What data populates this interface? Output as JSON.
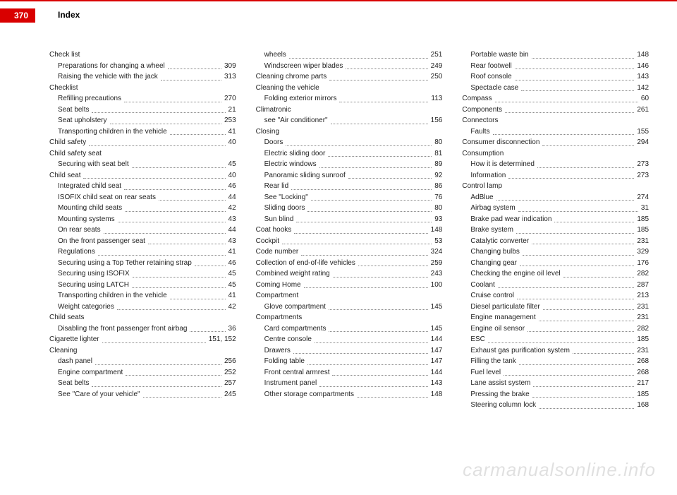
{
  "header": {
    "page_number": "370",
    "title": "Index",
    "tab_bg": "#d90000",
    "tab_fg": "#ffffff"
  },
  "watermark": "carmanualsonline.info",
  "columns": [
    [
      {
        "label": "Check list",
        "sub": false,
        "page": ""
      },
      {
        "label": "Preparations for changing a wheel",
        "sub": true,
        "page": "309"
      },
      {
        "label": "Raising the vehicle with the jack",
        "sub": true,
        "page": "313"
      },
      {
        "label": "Checklist",
        "sub": false,
        "page": ""
      },
      {
        "label": "Refilling precautions",
        "sub": true,
        "page": "270"
      },
      {
        "label": "Seat belts",
        "sub": true,
        "page": "21"
      },
      {
        "label": "Seat upholstery",
        "sub": true,
        "page": "253"
      },
      {
        "label": "Transporting children in the vehicle",
        "sub": true,
        "page": "41"
      },
      {
        "label": "Child safety",
        "sub": false,
        "page": "40"
      },
      {
        "label": "Child safety seat",
        "sub": false,
        "page": ""
      },
      {
        "label": "Securing with seat belt",
        "sub": true,
        "page": "45"
      },
      {
        "label": "Child seat",
        "sub": false,
        "page": "40"
      },
      {
        "label": "Integrated child seat",
        "sub": true,
        "page": "46"
      },
      {
        "label": "ISOFIX child seat on rear seats",
        "sub": true,
        "page": "44"
      },
      {
        "label": "Mounting child seats",
        "sub": true,
        "page": "42"
      },
      {
        "label": "Mounting systems",
        "sub": true,
        "page": "43"
      },
      {
        "label": "On rear seats",
        "sub": true,
        "page": "44"
      },
      {
        "label": "On the front passenger seat",
        "sub": true,
        "page": "43"
      },
      {
        "label": "Regulations",
        "sub": true,
        "page": "41"
      },
      {
        "label": "Securing using a Top Tether retaining strap",
        "sub": true,
        "page": "46"
      },
      {
        "label": "Securing using ISOFIX",
        "sub": true,
        "page": "45"
      },
      {
        "label": "Securing using LATCH",
        "sub": true,
        "page": "45"
      },
      {
        "label": "Transporting children in the vehicle",
        "sub": true,
        "page": "41"
      },
      {
        "label": "Weight categories",
        "sub": true,
        "page": "42"
      },
      {
        "label": "Child seats",
        "sub": false,
        "page": ""
      },
      {
        "label": "Disabling the front passenger front airbag",
        "sub": true,
        "page": "36"
      },
      {
        "label": "Cigarette lighter",
        "sub": false,
        "page": "151, 152"
      },
      {
        "label": "Cleaning",
        "sub": false,
        "page": ""
      },
      {
        "label": "dash panel",
        "sub": true,
        "page": "256"
      },
      {
        "label": "Engine compartment",
        "sub": true,
        "page": "252"
      },
      {
        "label": "Seat belts",
        "sub": true,
        "page": "257"
      },
      {
        "label": "See \"Care of your vehicle\"",
        "sub": true,
        "page": "245"
      }
    ],
    [
      {
        "label": "wheels",
        "sub": true,
        "page": "251"
      },
      {
        "label": "Windscreen wiper blades",
        "sub": true,
        "page": "249"
      },
      {
        "label": "Cleaning chrome parts",
        "sub": false,
        "page": "250"
      },
      {
        "label": "Cleaning the vehicle",
        "sub": false,
        "page": ""
      },
      {
        "label": "Folding exterior mirrors",
        "sub": true,
        "page": "113"
      },
      {
        "label": "Climatronic",
        "sub": false,
        "page": ""
      },
      {
        "label": "see \"Air conditioner\"",
        "sub": true,
        "page": "156"
      },
      {
        "label": "Closing",
        "sub": false,
        "page": ""
      },
      {
        "label": "Doors",
        "sub": true,
        "page": "80"
      },
      {
        "label": "Electric sliding door",
        "sub": true,
        "page": "81"
      },
      {
        "label": "Electric windows",
        "sub": true,
        "page": "89"
      },
      {
        "label": "Panoramic sliding sunroof",
        "sub": true,
        "page": "92"
      },
      {
        "label": "Rear lid",
        "sub": true,
        "page": "86"
      },
      {
        "label": "See \"Locking\"",
        "sub": true,
        "page": "76"
      },
      {
        "label": "Sliding doors",
        "sub": true,
        "page": "80"
      },
      {
        "label": "Sun blind",
        "sub": true,
        "page": "93"
      },
      {
        "label": "Coat hooks",
        "sub": false,
        "page": "148"
      },
      {
        "label": "Cockpit",
        "sub": false,
        "page": "53"
      },
      {
        "label": "Code number",
        "sub": false,
        "page": "324"
      },
      {
        "label": "Collection of end-of-life vehicles",
        "sub": false,
        "page": "259"
      },
      {
        "label": "Combined weight rating",
        "sub": false,
        "page": "243"
      },
      {
        "label": "Coming Home",
        "sub": false,
        "page": "100"
      },
      {
        "label": "Compartment",
        "sub": false,
        "page": ""
      },
      {
        "label": "Glove compartment",
        "sub": true,
        "page": "145"
      },
      {
        "label": "Compartments",
        "sub": false,
        "page": ""
      },
      {
        "label": "Card compartments",
        "sub": true,
        "page": "145"
      },
      {
        "label": "Centre console",
        "sub": true,
        "page": "144"
      },
      {
        "label": "Drawers",
        "sub": true,
        "page": "147"
      },
      {
        "label": "Folding table",
        "sub": true,
        "page": "147"
      },
      {
        "label": "Front central armrest",
        "sub": true,
        "page": "144"
      },
      {
        "label": "Instrument panel",
        "sub": true,
        "page": "143"
      },
      {
        "label": "Other storage compartments",
        "sub": true,
        "page": "148"
      }
    ],
    [
      {
        "label": "Portable waste bin",
        "sub": true,
        "page": "148"
      },
      {
        "label": "Rear footwell",
        "sub": true,
        "page": "146"
      },
      {
        "label": "Roof console",
        "sub": true,
        "page": "143"
      },
      {
        "label": "Spectacle case",
        "sub": true,
        "page": "142"
      },
      {
        "label": "Compass",
        "sub": false,
        "page": "60"
      },
      {
        "label": "Components",
        "sub": false,
        "page": "261"
      },
      {
        "label": "Connectors",
        "sub": false,
        "page": ""
      },
      {
        "label": "Faults",
        "sub": true,
        "page": "155"
      },
      {
        "label": "Consumer disconnection",
        "sub": false,
        "page": "294"
      },
      {
        "label": "Consumption",
        "sub": false,
        "page": ""
      },
      {
        "label": "How it is determined",
        "sub": true,
        "page": "273"
      },
      {
        "label": "Information",
        "sub": true,
        "page": "273"
      },
      {
        "label": "Control lamp",
        "sub": false,
        "page": ""
      },
      {
        "label": "AdBlue",
        "sub": true,
        "page": "274"
      },
      {
        "label": "Airbag system",
        "sub": true,
        "page": "31"
      },
      {
        "label": "Brake pad wear indication",
        "sub": true,
        "page": "185"
      },
      {
        "label": "Brake system",
        "sub": true,
        "page": "185"
      },
      {
        "label": "Catalytic converter",
        "sub": true,
        "page": "231"
      },
      {
        "label": "Changing bulbs",
        "sub": true,
        "page": "329"
      },
      {
        "label": "Changing gear",
        "sub": true,
        "page": "176"
      },
      {
        "label": "Checking the engine oil level",
        "sub": true,
        "page": "282"
      },
      {
        "label": "Coolant",
        "sub": true,
        "page": "287"
      },
      {
        "label": "Cruise control",
        "sub": true,
        "page": "213"
      },
      {
        "label": "Diesel particulate filter",
        "sub": true,
        "page": "231"
      },
      {
        "label": "Engine management",
        "sub": true,
        "page": "231"
      },
      {
        "label": "Engine oil sensor",
        "sub": true,
        "page": "282"
      },
      {
        "label": "ESC",
        "sub": true,
        "page": "185"
      },
      {
        "label": "Exhaust gas purification system",
        "sub": true,
        "page": "231"
      },
      {
        "label": "Filling the tank",
        "sub": true,
        "page": "268"
      },
      {
        "label": "Fuel level",
        "sub": true,
        "page": "268"
      },
      {
        "label": "Lane assist system",
        "sub": true,
        "page": "217"
      },
      {
        "label": "Pressing the brake",
        "sub": true,
        "page": "185"
      },
      {
        "label": "Steering column lock",
        "sub": true,
        "page": "168"
      }
    ]
  ]
}
